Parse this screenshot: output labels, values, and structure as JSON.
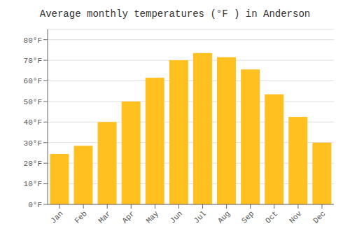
{
  "chart_data": {
    "type": "bar",
    "title": "Average monthly temperatures (°F ) in Anderson",
    "categories": [
      "Jan",
      "Feb",
      "Mar",
      "Apr",
      "May",
      "Jun",
      "Jul",
      "Aug",
      "Sep",
      "Oct",
      "Nov",
      "Dec"
    ],
    "values": [
      24.5,
      28.5,
      40.0,
      50.0,
      61.5,
      70.0,
      73.5,
      71.5,
      65.5,
      53.5,
      42.5,
      30.0
    ],
    "color": "#FFC020",
    "ylim": [
      0,
      85
    ],
    "yticks": [
      {
        "value": 0,
        "label": "0°F"
      },
      {
        "value": 10,
        "label": "10°F"
      },
      {
        "value": 20,
        "label": "20°F"
      },
      {
        "value": 30,
        "label": "30°F"
      },
      {
        "value": 40,
        "label": "40°F"
      },
      {
        "value": 50,
        "label": "50°F"
      },
      {
        "value": 60,
        "label": "60°F"
      },
      {
        "value": 70,
        "label": "70°F"
      },
      {
        "value": 80,
        "label": "80°F"
      }
    ],
    "grid": true
  }
}
